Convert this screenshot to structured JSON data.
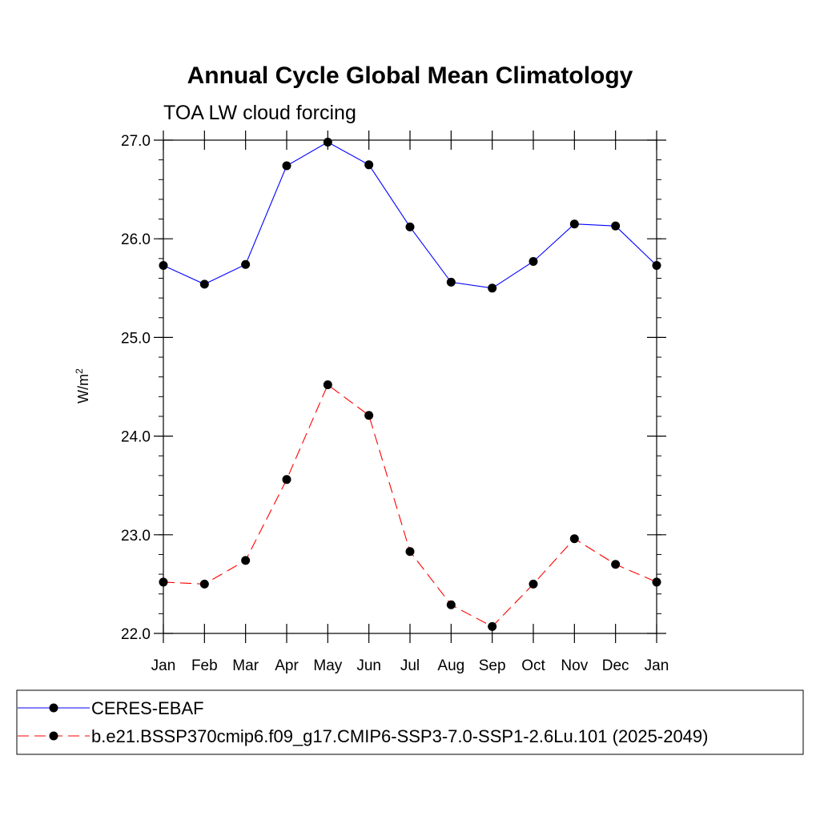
{
  "chart_data": {
    "type": "line",
    "title": "Annual Cycle Global Mean Climatology",
    "subtitle": "TOA LW cloud forcing",
    "xlabel": "",
    "ylabel": "W/m",
    "ylabel_superscript": "2",
    "categories": [
      "Jan",
      "Feb",
      "Mar",
      "Apr",
      "May",
      "Jun",
      "Jul",
      "Aug",
      "Sep",
      "Oct",
      "Nov",
      "Dec",
      "Jan"
    ],
    "ylim": [
      22.0,
      27.0
    ],
    "yticks": [
      22.0,
      23.0,
      24.0,
      25.0,
      26.0,
      27.0
    ],
    "ytick_labels": [
      "22.0",
      "23.0",
      "24.0",
      "25.0",
      "26.0",
      "27.0"
    ],
    "grid": false,
    "legend_placement": "bottom",
    "series": [
      {
        "name": "CERES-EBAF",
        "color": "#0000ff",
        "line_style": "solid",
        "marker": "filled-circle",
        "values": [
          25.73,
          25.54,
          25.74,
          26.74,
          26.98,
          26.75,
          26.12,
          25.56,
          25.5,
          25.77,
          26.15,
          26.13,
          25.73
        ]
      },
      {
        "name": "b.e21.BSSP370cmip6.f09_g17.CMIP6-SSP3-7.0-SSP1-2.6Lu.101 (2025-2049)",
        "color": "#ff0000",
        "line_style": "dashed",
        "marker": "filled-circle",
        "values": [
          22.52,
          22.5,
          22.74,
          23.56,
          24.52,
          24.21,
          22.83,
          22.29,
          22.07,
          22.5,
          22.96,
          22.7,
          22.52
        ]
      }
    ]
  }
}
